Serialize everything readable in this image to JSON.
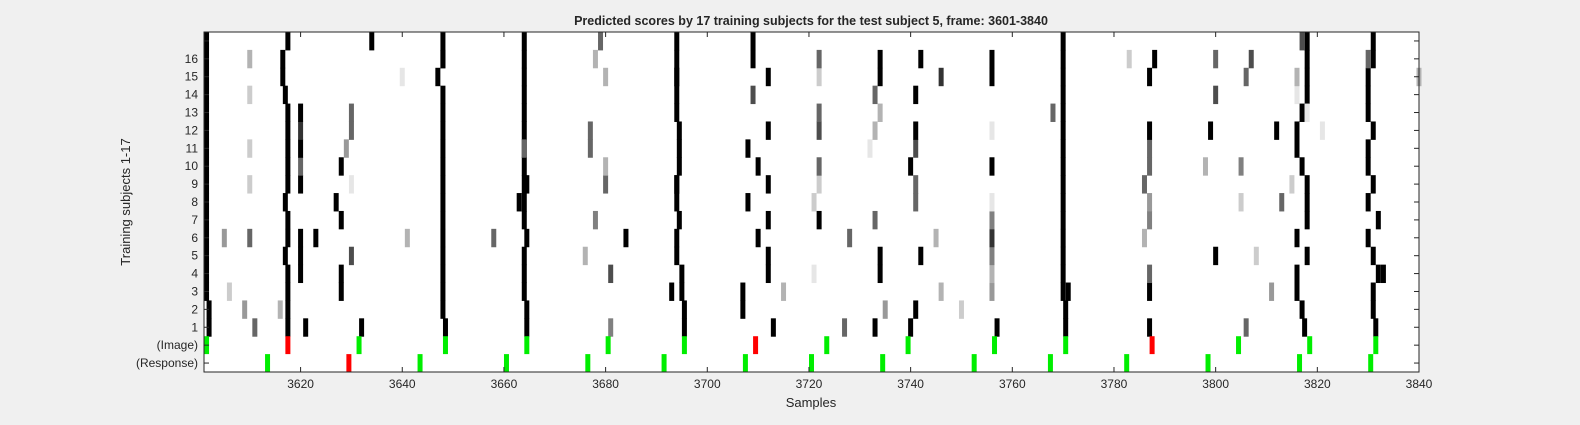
{
  "chart_data": {
    "type": "heatmap",
    "title": "Predicted scores by 17 training subjects for the test subject 5, frame: 3601-3840",
    "xlabel": "Samples",
    "ylabel": "Training subjects 1-17",
    "xlim": [
      3601,
      3840
    ],
    "xticks": [
      3620,
      3640,
      3660,
      3680,
      3700,
      3720,
      3740,
      3760,
      3780,
      3800,
      3820,
      3840
    ],
    "row_labels": [
      "(Response)",
      "(Image)",
      "1",
      "2",
      "3",
      "4",
      "5",
      "6",
      "7",
      "8",
      "9",
      "10",
      "11",
      "12",
      "13",
      "14",
      "15",
      "16",
      ""
    ],
    "grid": false,
    "colors": {
      "correct": "#00ee00",
      "error": "#ff0000",
      "score_high": "#000000",
      "score_low": "#ffffff",
      "background": "#ffffff"
    },
    "response_markers": [
      {
        "x": 3613.5,
        "status": "correct"
      },
      {
        "x": 3629.5,
        "status": "error"
      },
      {
        "x": 3643.5,
        "status": "correct"
      },
      {
        "x": 3660.5,
        "status": "correct"
      },
      {
        "x": 3676.5,
        "status": "correct"
      },
      {
        "x": 3691.5,
        "status": "correct"
      },
      {
        "x": 3707.5,
        "status": "correct"
      },
      {
        "x": 3720.5,
        "status": "correct"
      },
      {
        "x": 3734.5,
        "status": "correct"
      },
      {
        "x": 3752.5,
        "status": "correct"
      },
      {
        "x": 3767.5,
        "status": "correct"
      },
      {
        "x": 3782.5,
        "status": "correct"
      },
      {
        "x": 3798.5,
        "status": "correct"
      },
      {
        "x": 3816.5,
        "status": "correct"
      },
      {
        "x": 3830.5,
        "status": "correct"
      }
    ],
    "image_markers": [
      {
        "x": 3601.5,
        "status": "correct"
      },
      {
        "x": 3617.5,
        "status": "error"
      },
      {
        "x": 3631.5,
        "status": "correct"
      },
      {
        "x": 3648.5,
        "status": "correct"
      },
      {
        "x": 3664.5,
        "status": "correct"
      },
      {
        "x": 3680.5,
        "status": "correct"
      },
      {
        "x": 3695.5,
        "status": "correct"
      },
      {
        "x": 3709.5,
        "status": "error"
      },
      {
        "x": 3723.5,
        "status": "correct"
      },
      {
        "x": 3739.5,
        "status": "correct"
      },
      {
        "x": 3756.5,
        "status": "correct"
      },
      {
        "x": 3770.5,
        "status": "correct"
      },
      {
        "x": 3787.5,
        "status": "error"
      },
      {
        "x": 3804.5,
        "status": "correct"
      },
      {
        "x": 3818.5,
        "status": "correct"
      },
      {
        "x": 3831.5,
        "status": "correct"
      }
    ],
    "score_tracks": [
      [
        [
          1,
          3602
        ],
        [
          2,
          3602
        ],
        [
          3,
          3601.5
        ],
        [
          4,
          3601.5
        ],
        [
          5,
          3601.5
        ],
        [
          6,
          3601.5
        ],
        [
          7,
          3601.5
        ],
        [
          8,
          3601.5
        ],
        [
          9,
          3601.5
        ],
        [
          10,
          3601.5
        ],
        [
          11,
          3601.5
        ],
        [
          12,
          3601.5
        ],
        [
          13,
          3601.5
        ],
        [
          14,
          3601.5
        ],
        [
          15,
          3601.5
        ],
        [
          16,
          3601.5
        ],
        [
          17,
          3601.5
        ]
      ],
      [
        [
          1,
          3617.5
        ],
        [
          2,
          3617.5
        ],
        [
          3,
          3617.5
        ],
        [
          4,
          3617.5
        ],
        [
          5,
          3617
        ],
        [
          6,
          3617.5
        ],
        [
          7,
          3617.5
        ],
        [
          8,
          3617
        ],
        [
          9,
          3617.5
        ],
        [
          10,
          3617.5
        ],
        [
          11,
          3617.5
        ],
        [
          12,
          3617.5
        ],
        [
          13,
          3617.5
        ],
        [
          14,
          3617
        ],
        [
          15,
          3616.5
        ],
        [
          16,
          3616.5
        ],
        [
          17,
          3617.5
        ]
      ],
      [
        [
          1,
          3648.5
        ],
        [
          2,
          3648
        ],
        [
          3,
          3648
        ],
        [
          4,
          3648
        ],
        [
          5,
          3648
        ],
        [
          6,
          3648
        ],
        [
          7,
          3648
        ],
        [
          8,
          3648
        ],
        [
          9,
          3648
        ],
        [
          10,
          3648
        ],
        [
          11,
          3648
        ],
        [
          12,
          3648
        ],
        [
          13,
          3648
        ],
        [
          14,
          3648
        ],
        [
          15,
          3647
        ],
        [
          16,
          3648
        ],
        [
          17,
          3648
        ]
      ],
      [
        [
          1,
          3664.5
        ],
        [
          2,
          3664.5
        ],
        [
          3,
          3664
        ],
        [
          4,
          3664
        ],
        [
          5,
          3664
        ],
        [
          6,
          3664.5
        ],
        [
          7,
          3664
        ],
        [
          8,
          3664
        ],
        [
          9,
          3664.5
        ],
        [
          10,
          3664
        ],
        [
          11,
          3664
        ],
        [
          12,
          3664
        ],
        [
          13,
          3664
        ],
        [
          14,
          3664
        ],
        [
          15,
          3664
        ],
        [
          16,
          3664
        ],
        [
          17,
          3664
        ]
      ],
      [
        [
          1,
          3695.5
        ],
        [
          2,
          3695.5
        ],
        [
          3,
          3695
        ],
        [
          4,
          3695
        ],
        [
          5,
          3694
        ],
        [
          6,
          3694
        ],
        [
          7,
          3694.5
        ],
        [
          8,
          3694
        ],
        [
          9,
          3694
        ],
        [
          10,
          3694.5
        ],
        [
          11,
          3694.5
        ],
        [
          12,
          3694.5
        ],
        [
          13,
          3694
        ],
        [
          14,
          3694
        ],
        [
          15,
          3694
        ],
        [
          16,
          3694
        ],
        [
          17,
          3694
        ]
      ],
      [
        [
          1,
          3770.5
        ],
        [
          2,
          3770.5
        ],
        [
          3,
          3771
        ],
        [
          4,
          3770
        ],
        [
          5,
          3770
        ],
        [
          6,
          3770
        ],
        [
          7,
          3770
        ],
        [
          8,
          3770
        ],
        [
          9,
          3770
        ],
        [
          10,
          3770
        ],
        [
          11,
          3770
        ],
        [
          12,
          3770
        ],
        [
          13,
          3770
        ],
        [
          14,
          3770
        ],
        [
          15,
          3770
        ],
        [
          16,
          3770
        ],
        [
          17,
          3770
        ]
      ],
      [
        [
          1,
          3831.5
        ],
        [
          2,
          3831
        ],
        [
          3,
          3831
        ],
        [
          4,
          3832
        ],
        [
          5,
          3831
        ],
        [
          6,
          3830
        ],
        [
          7,
          3832
        ],
        [
          8,
          3830
        ],
        [
          9,
          3831
        ],
        [
          10,
          3830
        ],
        [
          11,
          3830
        ],
        [
          12,
          3831
        ],
        [
          13,
          3830
        ],
        [
          14,
          3830
        ],
        [
          15,
          3830
        ],
        [
          16,
          3831
        ],
        [
          17,
          3831
        ]
      ],
      [
        [
          1,
          3817.5
        ],
        [
          2,
          3817
        ],
        [
          3,
          3816
        ],
        [
          4,
          3816
        ],
        [
          5,
          3818
        ],
        [
          6,
          3816
        ],
        [
          7,
          3818
        ],
        [
          8,
          3818
        ],
        [
          9,
          3818
        ],
        [
          10,
          3817
        ],
        [
          11,
          3816
        ],
        [
          12,
          3816
        ],
        [
          13,
          3817
        ],
        [
          14,
          3818
        ],
        [
          15,
          3818
        ],
        [
          16,
          3818
        ],
        [
          17,
          3818
        ]
      ]
    ],
    "score_cells": [
      [
        1,
        3632,
        1
      ],
      [
        1,
        3713,
        1
      ],
      [
        1,
        3733,
        1
      ],
      [
        1,
        3740,
        1
      ],
      [
        1,
        3757,
        1
      ],
      [
        1,
        3787,
        1
      ],
      [
        1,
        3727,
        0.6
      ],
      [
        1,
        3681,
        0.5
      ],
      [
        1,
        3806,
        0.6
      ],
      [
        1,
        3611,
        0.6
      ],
      [
        1,
        3621,
        1
      ],
      [
        2,
        3741,
        1
      ],
      [
        2,
        3750,
        0.2
      ],
      [
        2,
        3735,
        0.4
      ],
      [
        2,
        3707,
        1
      ],
      [
        2,
        3609,
        0.4
      ],
      [
        2,
        3616,
        0.3
      ],
      [
        3,
        3606,
        0.2
      ],
      [
        3,
        3628,
        1
      ],
      [
        3,
        3693,
        1
      ],
      [
        3,
        3707,
        1
      ],
      [
        3,
        3746,
        0.3
      ],
      [
        3,
        3756,
        0.4
      ],
      [
        3,
        3787,
        1
      ],
      [
        3,
        3811,
        0.4
      ],
      [
        3,
        3770,
        1
      ],
      [
        3,
        3715,
        0.3
      ],
      [
        4,
        3620,
        1
      ],
      [
        4,
        3628,
        1
      ],
      [
        4,
        3681,
        0.7
      ],
      [
        4,
        3712,
        1
      ],
      [
        4,
        3734,
        1
      ],
      [
        4,
        3787,
        0.6
      ],
      [
        4,
        3756,
        0.3
      ],
      [
        4,
        3721,
        0.1
      ],
      [
        4,
        3833,
        1
      ],
      [
        5,
        3630,
        0.7
      ],
      [
        5,
        3676,
        0.3
      ],
      [
        5,
        3712,
        1
      ],
      [
        5,
        3734,
        1
      ],
      [
        5,
        3742,
        1
      ],
      [
        5,
        3756,
        0.5
      ],
      [
        5,
        3800,
        1
      ],
      [
        5,
        3808,
        0.2
      ],
      [
        5,
        3620,
        1
      ],
      [
        6,
        3623,
        1
      ],
      [
        6,
        3641,
        0.3
      ],
      [
        6,
        3658,
        0.6
      ],
      [
        6,
        3684,
        1
      ],
      [
        6,
        3710,
        1
      ],
      [
        6,
        3728,
        0.6
      ],
      [
        6,
        3745,
        0.3
      ],
      [
        6,
        3756,
        0.8
      ],
      [
        6,
        3786,
        0.3
      ],
      [
        6,
        3610,
        0.6
      ],
      [
        6,
        3620,
        1
      ],
      [
        6,
        3605,
        0.4
      ],
      [
        7,
        3628,
        1
      ],
      [
        7,
        3678,
        0.5
      ],
      [
        7,
        3712,
        1
      ],
      [
        7,
        3722,
        1
      ],
      [
        7,
        3733,
        0.6
      ],
      [
        7,
        3756,
        0.5
      ],
      [
        7,
        3787,
        0.5
      ],
      [
        8,
        3627,
        1
      ],
      [
        8,
        3663,
        1
      ],
      [
        8,
        3708,
        1
      ],
      [
        8,
        3721,
        0.2
      ],
      [
        8,
        3741,
        0.6
      ],
      [
        8,
        3756,
        0.1
      ],
      [
        8,
        3787,
        0.4
      ],
      [
        8,
        3805,
        0.2
      ],
      [
        8,
        3813,
        0.6
      ],
      [
        9,
        3610,
        0.2
      ],
      [
        9,
        3630,
        0.1
      ],
      [
        9,
        3664,
        1
      ],
      [
        9,
        3680,
        0.6
      ],
      [
        9,
        3694,
        1
      ],
      [
        9,
        3712,
        1
      ],
      [
        9,
        3722,
        0.2
      ],
      [
        9,
        3741,
        0.6
      ],
      [
        9,
        3786,
        0.6
      ],
      [
        9,
        3815,
        0.2
      ],
      [
        9,
        3620,
        1
      ],
      [
        10,
        3628,
        1
      ],
      [
        10,
        3680,
        0.3
      ],
      [
        10,
        3710,
        1
      ],
      [
        10,
        3722,
        0.6
      ],
      [
        10,
        3740,
        1
      ],
      [
        10,
        3756,
        1
      ],
      [
        10,
        3787,
        0.6
      ],
      [
        10,
        3798,
        0.3
      ],
      [
        10,
        3805,
        0.5
      ],
      [
        10,
        3620,
        0.6
      ],
      [
        11,
        3610,
        0.2
      ],
      [
        11,
        3629,
        0.4
      ],
      [
        11,
        3677,
        0.6
      ],
      [
        11,
        3708,
        1
      ],
      [
        11,
        3732,
        0.1
      ],
      [
        11,
        3741,
        0.7
      ],
      [
        11,
        3787,
        0.6
      ],
      [
        11,
        3664,
        0.6
      ],
      [
        11,
        3620,
        1
      ],
      [
        12,
        3630,
        0.6
      ],
      [
        12,
        3677,
        0.6
      ],
      [
        12,
        3712,
        1
      ],
      [
        12,
        3722,
        0.7
      ],
      [
        12,
        3733,
        0.3
      ],
      [
        12,
        3741,
        1
      ],
      [
        12,
        3756,
        0.1
      ],
      [
        12,
        3787,
        1
      ],
      [
        12,
        3799,
        1
      ],
      [
        12,
        3812,
        1
      ],
      [
        12,
        3821,
        0.1
      ],
      [
        12,
        3620,
        0.8
      ],
      [
        13,
        3630,
        0.6
      ],
      [
        13,
        3722,
        0.6
      ],
      [
        13,
        3734,
        0.3
      ],
      [
        13,
        3768,
        0.6
      ],
      [
        13,
        3818,
        0.1
      ],
      [
        13,
        3620,
        1
      ],
      [
        14,
        3610,
        0.2
      ],
      [
        14,
        3709,
        0.7
      ],
      [
        14,
        3733,
        0.6
      ],
      [
        14,
        3741,
        1
      ],
      [
        14,
        3800,
        0.7
      ],
      [
        14,
        3816,
        0.1
      ],
      [
        15,
        3640,
        0.1
      ],
      [
        15,
        3712,
        1
      ],
      [
        15,
        3722,
        0.2
      ],
      [
        15,
        3734,
        1
      ],
      [
        15,
        3746,
        0.8
      ],
      [
        15,
        3756,
        1
      ],
      [
        15,
        3787,
        1
      ],
      [
        15,
        3806,
        0.6
      ],
      [
        15,
        3816,
        0.3
      ],
      [
        15,
        3840,
        0.3
      ],
      [
        15,
        3680,
        0.3
      ],
      [
        15,
        3694,
        1
      ],
      [
        16,
        3610,
        0.3
      ],
      [
        16,
        3678,
        0.3
      ],
      [
        16,
        3709,
        1
      ],
      [
        16,
        3722,
        0.6
      ],
      [
        16,
        3734,
        1
      ],
      [
        16,
        3742,
        1
      ],
      [
        16,
        3756,
        1
      ],
      [
        16,
        3783,
        0.2
      ],
      [
        16,
        3788,
        1
      ],
      [
        16,
        3800,
        0.6
      ],
      [
        16,
        3807,
        0.7
      ],
      [
        16,
        3830,
        0.6
      ],
      [
        16,
        3648,
        1
      ],
      [
        17,
        3634,
        1
      ],
      [
        17,
        3709,
        1
      ],
      [
        17,
        3817,
        0.7
      ],
      [
        17,
        3679,
        0.6
      ]
    ]
  }
}
